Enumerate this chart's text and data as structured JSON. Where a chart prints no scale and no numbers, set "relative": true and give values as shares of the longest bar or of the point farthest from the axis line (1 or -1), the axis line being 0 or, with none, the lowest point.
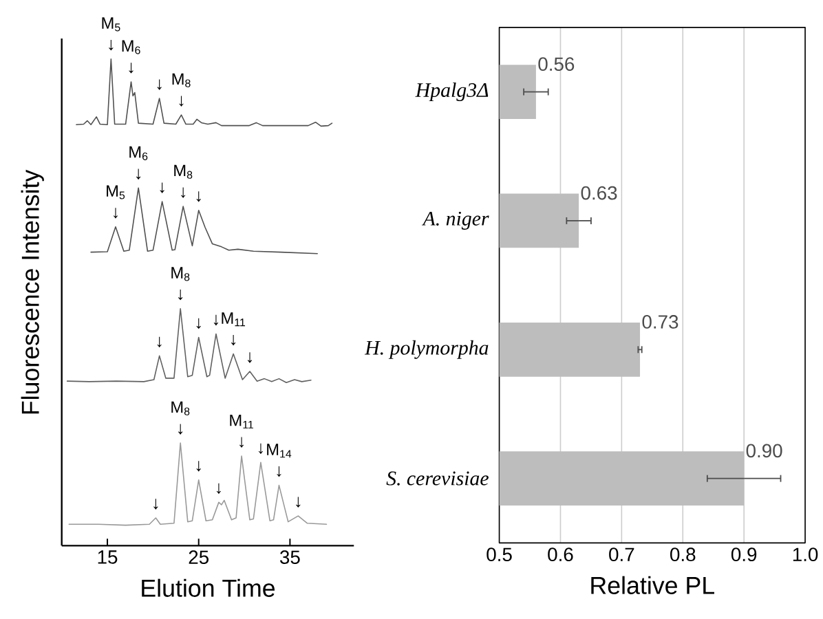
{
  "chart_data": [
    {
      "type": "line",
      "relative": true,
      "xlim": [
        10,
        42
      ],
      "xticks": [
        15,
        25,
        35
      ],
      "xlabel": "Elution Time",
      "ylabel": "Fluorescence Intensity",
      "series": [
        {
          "color": "#505050",
          "x": [
            11.6,
            12.4,
            12.8,
            13.2,
            13.8,
            14.2,
            15.0,
            15.4,
            15.8,
            17.0,
            17.6,
            17.8,
            18.0,
            18.4,
            20.0,
            20.7,
            21.2,
            22.5,
            23.1,
            23.6,
            24.4,
            24.8,
            25.3,
            26.0,
            26.9,
            27.5,
            30.5,
            31.3,
            32.0,
            37.0,
            37.8,
            38.4,
            39.2,
            39.6
          ],
          "values": [
            0.865,
            0.866,
            0.873,
            0.865,
            0.881,
            0.866,
            0.865,
            1.0,
            0.866,
            0.866,
            0.953,
            0.924,
            0.931,
            0.868,
            0.866,
            0.919,
            0.868,
            0.866,
            0.885,
            0.866,
            0.866,
            0.876,
            0.869,
            0.866,
            0.869,
            0.863,
            0.863,
            0.869,
            0.863,
            0.863,
            0.87,
            0.862,
            0.863,
            0.868
          ]
        },
        {
          "color": "#505050",
          "x": [
            13.2,
            15.0,
            15.9,
            16.8,
            17.4,
            18.4,
            19.4,
            20.0,
            21.0,
            22.1,
            22.4,
            23.3,
            24.3,
            25.0,
            25.7,
            26.5,
            27.5,
            28.3,
            29.3,
            31.0,
            34.0,
            38.0
          ],
          "values": [
            0.603,
            0.604,
            0.655,
            0.605,
            0.607,
            0.735,
            0.605,
            0.607,
            0.707,
            0.607,
            0.608,
            0.697,
            0.616,
            0.689,
            0.654,
            0.62,
            0.614,
            0.607,
            0.609,
            0.605,
            0.603,
            0.6
          ]
        },
        {
          "color": "#606060",
          "x": [
            10.6,
            13.0,
            16.0,
            19.0,
            20.1,
            20.7,
            21.4,
            22.3,
            23.0,
            23.8,
            24.3,
            25.0,
            25.9,
            26.2,
            26.9,
            27.9,
            28.8,
            29.8,
            30.6,
            31.4,
            32.2,
            33.0,
            33.8,
            34.6,
            35.5,
            36.3,
            37.3
          ],
          "values": [
            0.338,
            0.337,
            0.338,
            0.337,
            0.341,
            0.39,
            0.344,
            0.344,
            0.487,
            0.347,
            0.35,
            0.428,
            0.347,
            0.35,
            0.435,
            0.344,
            0.394,
            0.341,
            0.358,
            0.338,
            0.343,
            0.337,
            0.343,
            0.335,
            0.341,
            0.337,
            0.34
          ]
        },
        {
          "color": "#999999",
          "x": [
            10.8,
            14.0,
            17.0,
            19.6,
            20.3,
            20.8,
            22.3,
            23.0,
            23.8,
            24.3,
            25.0,
            25.8,
            26.5,
            27.2,
            27.5,
            27.8,
            28.6,
            29.1,
            29.7,
            30.6,
            31.0,
            31.8,
            32.8,
            33.2,
            33.8,
            34.8,
            35.9,
            36.9,
            39.0
          ],
          "values": [
            0.044,
            0.044,
            0.042,
            0.044,
            0.057,
            0.044,
            0.046,
            0.211,
            0.049,
            0.051,
            0.135,
            0.051,
            0.053,
            0.089,
            0.084,
            0.093,
            0.053,
            0.057,
            0.184,
            0.053,
            0.055,
            0.171,
            0.051,
            0.053,
            0.124,
            0.049,
            0.061,
            0.046,
            0.044
          ]
        }
      ],
      "annotations": [
        {
          "text": "↓",
          "x": 15.4,
          "y": 1.0
        },
        {
          "text": "↓",
          "x": 17.6,
          "y": 0.953
        },
        {
          "text": "↓",
          "x": 20.7,
          "y": 0.919
        },
        {
          "text": "↓",
          "x": 23.1,
          "y": 0.885
        },
        {
          "text": "M$_{5}$",
          "x": 15.4,
          "y": 1.0
        },
        {
          "text": "M$_{6}$",
          "x": 17.6,
          "y": 0.953
        },
        {
          "text": "M$_{8}$",
          "x": 23.1,
          "y": 0.885
        },
        {
          "text": "↓",
          "x": 15.9,
          "y": 0.655
        },
        {
          "text": "↓",
          "x": 18.4,
          "y": 0.735
        },
        {
          "text": "↓",
          "x": 21.0,
          "y": 0.707
        },
        {
          "text": "↓",
          "x": 23.3,
          "y": 0.697
        },
        {
          "text": "↓",
          "x": 25.0,
          "y": 0.689
        },
        {
          "text": "M$_{5}$",
          "x": 15.9,
          "y": 0.655
        },
        {
          "text": "M$_{6}$",
          "x": 18.4,
          "y": 0.735
        },
        {
          "text": "M$_{8}$",
          "x": 23.3,
          "y": 0.697
        },
        {
          "text": "↓",
          "x": 20.7,
          "y": 0.39
        },
        {
          "text": "↓",
          "x": 23.0,
          "y": 0.487
        },
        {
          "text": "↓",
          "x": 25.0,
          "y": 0.428
        },
        {
          "text": "↓",
          "x": 26.9,
          "y": 0.435
        },
        {
          "text": "↓",
          "x": 28.8,
          "y": 0.394
        },
        {
          "text": "↓",
          "x": 30.6,
          "y": 0.358
        },
        {
          "text": "M$_{8}$",
          "x": 23.0,
          "y": 0.487
        },
        {
          "text": "M$_{11}$",
          "x": 28.8,
          "y": 0.394
        },
        {
          "text": "↓",
          "x": 20.3,
          "y": 0.057
        },
        {
          "text": "↓",
          "x": 23.0,
          "y": 0.211
        },
        {
          "text": "↓",
          "x": 25.0,
          "y": 0.135
        },
        {
          "text": "↓",
          "x": 27.2,
          "y": 0.089
        },
        {
          "text": "↓",
          "x": 29.7,
          "y": 0.184
        },
        {
          "text": "↓",
          "x": 31.8,
          "y": 0.171
        },
        {
          "text": "↓",
          "x": 33.8,
          "y": 0.124
        },
        {
          "text": "↓",
          "x": 35.9,
          "y": 0.061
        },
        {
          "text": "M$_{8}$",
          "x": 23.0,
          "y": 0.211
        },
        {
          "text": "M$_{11}$",
          "x": 29.7,
          "y": 0.184
        },
        {
          "text": "M$_{14}$",
          "x": 33.8,
          "y": 0.124
        }
      ]
    },
    {
      "type": "bar",
      "orientation": "horizontal",
      "color": "#bdbdbd",
      "categories": [
        "Hpalg3Δ",
        "A. niger",
        "H. polymorpha",
        "S. cerevisiae"
      ],
      "values": [
        0.56,
        0.63,
        0.73,
        0.9
      ],
      "errors": [
        0.02,
        0.02,
        0.003,
        0.06
      ],
      "value_labels": [
        "0.56",
        "0.63",
        "0.73",
        "0.90"
      ],
      "xlim": [
        0.5,
        1.0
      ],
      "xticks": [
        0.5,
        0.6,
        0.7,
        0.8,
        0.9,
        {
          "value": 1.0,
          "label": "1.0"
        }
      ],
      "grid": "x",
      "xlabel": "Relative PL"
    }
  ]
}
